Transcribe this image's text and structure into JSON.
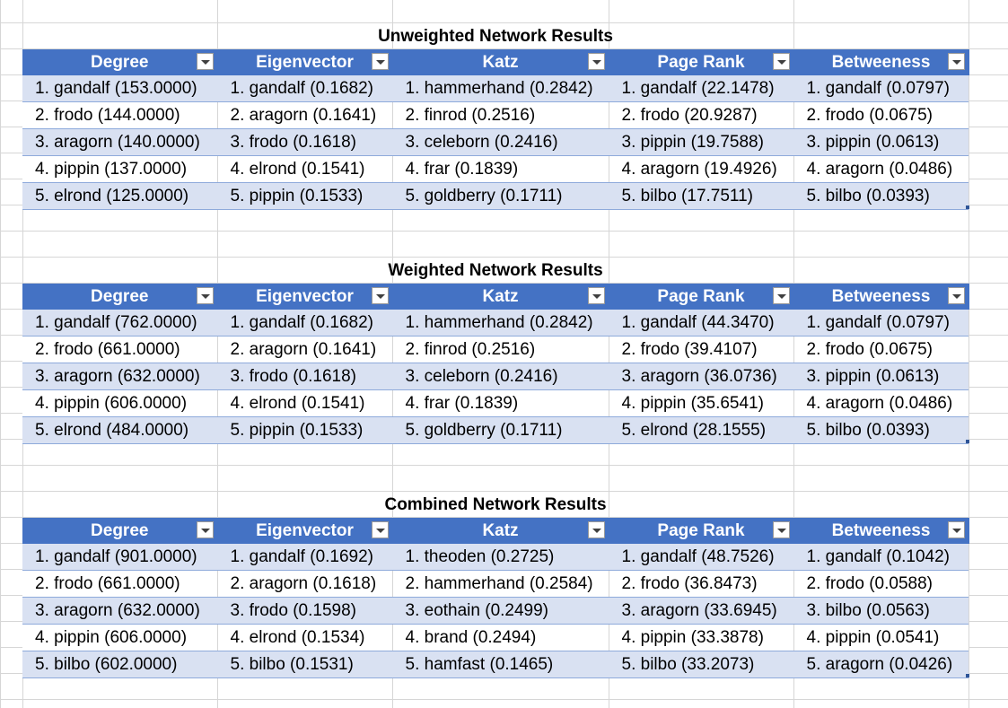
{
  "columns": [
    "Degree",
    "Eigenvector",
    "Katz",
    "Page Rank",
    "Betweeness"
  ],
  "tables": [
    {
      "title": "Unweighted Network Results",
      "rows": [
        [
          "1. gandalf (153.0000)",
          "1. gandalf (0.1682)",
          "1. hammerhand (0.2842)",
          "1. gandalf (22.1478)",
          "1. gandalf (0.0797)"
        ],
        [
          "2. frodo (144.0000)",
          "2. aragorn (0.1641)",
          "2. finrod (0.2516)",
          "2. frodo (20.9287)",
          "2. frodo (0.0675)"
        ],
        [
          "3. aragorn (140.0000)",
          "3. frodo (0.1618)",
          "3. celeborn (0.2416)",
          "3. pippin (19.7588)",
          "3. pippin (0.0613)"
        ],
        [
          "4. pippin (137.0000)",
          "4. elrond (0.1541)",
          "4. frar (0.1839)",
          "4. aragorn (19.4926)",
          "4. aragorn (0.0486)"
        ],
        [
          "5. elrond (125.0000)",
          "5. pippin (0.1533)",
          "5. goldberry (0.1711)",
          "5. bilbo (17.7511)",
          "5. bilbo (0.0393)"
        ]
      ]
    },
    {
      "title": "Weighted Network Results",
      "rows": [
        [
          "1. gandalf (762.0000)",
          "1. gandalf (0.1682)",
          "1. hammerhand (0.2842)",
          "1. gandalf (44.3470)",
          "1. gandalf (0.0797)"
        ],
        [
          "2. frodo (661.0000)",
          "2. aragorn (0.1641)",
          "2. finrod (0.2516)",
          "2. frodo (39.4107)",
          "2. frodo (0.0675)"
        ],
        [
          "3. aragorn (632.0000)",
          "3. frodo (0.1618)",
          "3. celeborn (0.2416)",
          "3. aragorn (36.0736)",
          "3. pippin (0.0613)"
        ],
        [
          "4. pippin (606.0000)",
          "4. elrond (0.1541)",
          "4. frar (0.1839)",
          "4. pippin (35.6541)",
          "4. aragorn (0.0486)"
        ],
        [
          "5. elrond (484.0000)",
          "5. pippin (0.1533)",
          "5. goldberry (0.1711)",
          "5. elrond (28.1555)",
          "5. bilbo (0.0393)"
        ]
      ]
    },
    {
      "title": "Combined Network Results",
      "rows": [
        [
          "1. gandalf (901.0000)",
          "1. gandalf (0.1692)",
          "1. theoden (0.2725)",
          "1. gandalf (48.7526)",
          "1. gandalf (0.1042)"
        ],
        [
          "2. frodo (661.0000)",
          "2. aragorn (0.1618)",
          "2. hammerhand (0.2584)",
          "2. frodo (36.8473)",
          "2. frodo (0.0588)"
        ],
        [
          "3. aragorn (632.0000)",
          "3. frodo (0.1598)",
          "3. eothain (0.2499)",
          "3. aragorn (33.6945)",
          "3. bilbo (0.0563)"
        ],
        [
          "4. pippin (606.0000)",
          "4. elrond (0.1534)",
          "4. brand (0.2494)",
          "4. pippin (33.3878)",
          "4. pippin (0.0541)"
        ],
        [
          "5. bilbo (602.0000)",
          "5. bilbo (0.1531)",
          "5. hamfast (0.1465)",
          "5. bilbo (33.2073)",
          "5. aragorn (0.0426)"
        ]
      ]
    }
  ],
  "colors": {
    "header_bg": "#4472c4",
    "band_bg": "#d9e1f2",
    "border": "#8eaadb",
    "gridline": "#d6d6d6"
  }
}
